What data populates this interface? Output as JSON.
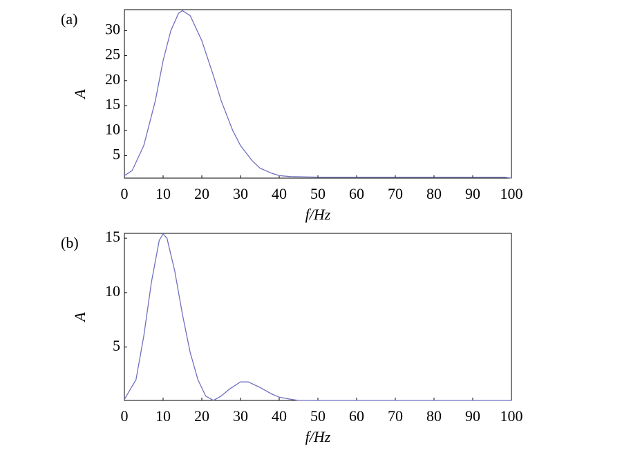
{
  "chart_data": [
    {
      "type": "line",
      "panel_label": "(a)",
      "xlabel": "f/Hz",
      "ylabel": "A",
      "x": [
        0,
        2,
        5,
        8,
        10,
        12,
        14,
        15,
        17,
        20,
        23,
        25,
        28,
        30,
        33,
        35,
        38,
        40,
        43,
        50,
        60,
        70,
        80,
        90,
        98,
        100
      ],
      "series": [
        {
          "color": "#7070c0",
          "values": [
            1,
            2,
            7,
            16,
            24,
            30,
            33.5,
            34,
            33,
            28,
            21,
            16,
            10,
            7,
            4,
            2.5,
            1.5,
            1,
            0.8,
            0.7,
            0.7,
            0.7,
            0.7,
            0.7,
            0.7,
            0.5
          ]
        }
      ],
      "xlim": [
        0,
        100
      ],
      "ylim": [
        0.5,
        34.2
      ],
      "xticks": [
        0,
        10,
        20,
        30,
        40,
        50,
        60,
        70,
        80,
        90,
        100
      ],
      "yticks": [
        5,
        10,
        15,
        20,
        25,
        30
      ]
    },
    {
      "type": "line",
      "panel_label": "(b)",
      "xlabel": "f/Hz",
      "ylabel": "A",
      "x": [
        0,
        3,
        5,
        7,
        9,
        10,
        11,
        13,
        15,
        17,
        19,
        21,
        23,
        25,
        27,
        30,
        32,
        35,
        38,
        40,
        43,
        45,
        50,
        100
      ],
      "series": [
        {
          "color": "#7070c0",
          "values": [
            0.2,
            2,
            6,
            11,
            14.8,
            15.4,
            15,
            12,
            8,
            4.5,
            2,
            0.5,
            0.1,
            0.5,
            1.1,
            1.8,
            1.8,
            1.3,
            0.7,
            0.4,
            0.2,
            0.1,
            0.1,
            0.1
          ]
        }
      ],
      "xlim": [
        0,
        100
      ],
      "ylim": [
        0.1,
        15.45
      ],
      "xticks": [
        0,
        10,
        20,
        30,
        40,
        50,
        60,
        70,
        80,
        90,
        100
      ],
      "yticks": [
        5,
        10,
        15
      ]
    }
  ]
}
